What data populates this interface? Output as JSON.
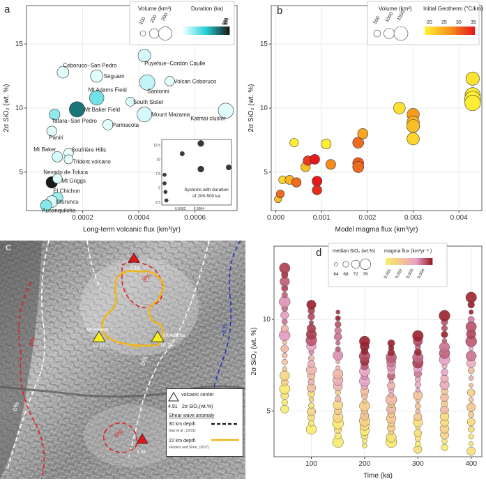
{
  "panels": {
    "a": {
      "letter": "a"
    },
    "b": {
      "letter": "b"
    },
    "c": {
      "letter": "c"
    },
    "d": {
      "letter": "d"
    }
  },
  "chart_data": [
    {
      "id": "a",
      "type": "scatter",
      "xlabel": "Long-term volcanic flux (km³/yr)",
      "ylabel": "2σ SiO₂ (wt. %)",
      "xlim": [
        0,
        0.00075
      ],
      "ylim": [
        2,
        18
      ],
      "xticks": [
        0.0002,
        0.0004,
        0.0006
      ],
      "xtick_labels": [
        "0.0002",
        "0.0004",
        "0.0006"
      ],
      "yticks": [
        5,
        10,
        15
      ],
      "legend": {
        "volume_title": "Volume (km³)",
        "volume_values": [
          "100",
          "200",
          "300"
        ],
        "duration_title": "Duration (ka)",
        "duration_ticks": [
          "0",
          "50",
          "100",
          "150",
          "200"
        ]
      },
      "points": [
        {
          "label": "Ceboruco−San Pedro",
          "x": 0.00013,
          "y": 12.8,
          "v": 120,
          "d": 5
        },
        {
          "label": "Seguam",
          "x": 0.00025,
          "y": 12.5,
          "v": 140,
          "d": 5
        },
        {
          "label": "Puyehue−Cordón Caulle",
          "x": 0.00042,
          "y": 14.1,
          "v": 150,
          "d": 10
        },
        {
          "label": "Volcan Ceboruco",
          "x": 0.00051,
          "y": 12.1,
          "v": 60,
          "d": 2
        },
        {
          "label": "Santorini",
          "x": 0.00043,
          "y": 12.0,
          "v": 260,
          "d": 20
        },
        {
          "label": "Mt Adams Field",
          "x": 0.00025,
          "y": 10.8,
          "v": 220,
          "d": 60
        },
        {
          "label": "South Sister",
          "x": 0.00037,
          "y": 10.5,
          "v": 50,
          "d": 5
        },
        {
          "label": "Mt Baker Field",
          "x": 0.00018,
          "y": 9.9,
          "v": 260,
          "d": 150
        },
        {
          "label": "Mount Mazama",
          "x": 0.00042,
          "y": 9.5,
          "v": 230,
          "d": 10
        },
        {
          "label": "Katmai cluster",
          "x": 0.00071,
          "y": 9.8,
          "v": 250,
          "d": 5
        },
        {
          "label": "Tatara−San Pedro",
          "x": 0.0001,
          "y": 9.5,
          "v": 90,
          "d": 45
        },
        {
          "label": "Parinacota",
          "x": 0.00029,
          "y": 8.7,
          "v": 80,
          "d": 5
        },
        {
          "label": "Paniri",
          "x": 9e-05,
          "y": 8.2,
          "v": 70,
          "d": 5
        },
        {
          "label": "Soufrière Hills",
          "x": 0.00015,
          "y": 6.5,
          "v": 60,
          "d": 2
        },
        {
          "label": "Trident volcano",
          "x": 0.00015,
          "y": 6.0,
          "v": 50,
          "d": 2
        },
        {
          "label": "Mt Baker",
          "x": 0.00011,
          "y": 6.2,
          "v": 80,
          "d": 10
        },
        {
          "label": "Nevado de Toluca",
          "x": 9e-05,
          "y": 4.2,
          "v": 110,
          "d": 200
        },
        {
          "label": "Mt Griggs",
          "x": 0.00011,
          "y": 4.5,
          "v": 60,
          "d": 5
        },
        {
          "label": "El Chichon",
          "x": 0.00011,
          "y": 3.0,
          "v": 100,
          "d": 40
        },
        {
          "label": "Uturuncu",
          "x": 9e-05,
          "y": 2.7,
          "v": 120,
          "d": 10
        },
        {
          "label": "Aucanquilcha",
          "x": 7e-05,
          "y": 2.4,
          "v": 100,
          "d": 50
        }
      ],
      "inset": {
        "title": "Systems with duration of 200-500 ka",
        "xlim": [
          0,
          0.00075
        ],
        "ylim": [
          2,
          13.5
        ],
        "xtick_labels": [
          "0.0002",
          "0.0004"
        ],
        "ytick_labels": [
          "2.5",
          "5",
          "7.5",
          "10",
          "12.5"
        ],
        "yticks": [
          2.5,
          5,
          7.5,
          10,
          12.5
        ],
        "xticks": [
          0.0002,
          0.0004
        ],
        "points": [
          {
            "x": 5e-05,
            "y": 2.8,
            "s": 3
          },
          {
            "x": 4e-05,
            "y": 4.3,
            "s": 3
          },
          {
            "x": 3e-05,
            "y": 5.8,
            "s": 3
          },
          {
            "x": 3e-05,
            "y": 7.3,
            "s": 3
          },
          {
            "x": 0.00022,
            "y": 11.0,
            "s": 4
          },
          {
            "x": 0.00042,
            "y": 12.8,
            "s": 6
          },
          {
            "x": 0.00042,
            "y": 8.3,
            "s": 6
          },
          {
            "x": 0.00072,
            "y": 8.6,
            "s": 5
          }
        ]
      }
    },
    {
      "id": "b",
      "type": "scatter",
      "xlabel": "Model magma flux (km³/yr)",
      "ylabel": "2σ SiO₂ (wt. %)",
      "xlim": [
        -0.0001,
        0.0045
      ],
      "ylim": [
        2,
        18
      ],
      "xticks": [
        0.0,
        0.001,
        0.002,
        0.003,
        0.004
      ],
      "xtick_labels": [
        "0.000",
        "0.001",
        "0.002",
        "0.003",
        "0.004"
      ],
      "yticks": [
        5,
        10,
        15
      ],
      "legend": {
        "volume_title": "Volume (km³)",
        "volume_values": [
          "500",
          "1000",
          "1500"
        ],
        "geotherm_title": "Initial Geotherm (°C/km)",
        "geotherm_ticks": [
          "20",
          "25",
          "30",
          "35"
        ]
      },
      "points": [
        {
          "x": 5e-05,
          "y": 2.9,
          "v": 100,
          "g": 24
        },
        {
          "x": 0.0001,
          "y": 3.3,
          "v": 150,
          "g": 30
        },
        {
          "x": 0.00015,
          "y": 4.4,
          "v": 150,
          "g": 22
        },
        {
          "x": 0.0003,
          "y": 4.4,
          "v": 250,
          "g": 25
        },
        {
          "x": 0.00045,
          "y": 4.2,
          "v": 300,
          "g": 30
        },
        {
          "x": 0.0004,
          "y": 7.3,
          "v": 200,
          "g": 20
        },
        {
          "x": 0.00065,
          "y": 5.4,
          "v": 300,
          "g": 24
        },
        {
          "x": 0.0007,
          "y": 5.9,
          "v": 300,
          "g": 33
        },
        {
          "x": 0.0009,
          "y": 4.3,
          "v": 350,
          "g": 35
        },
        {
          "x": 0.00085,
          "y": 6.0,
          "v": 350,
          "g": 35
        },
        {
          "x": 0.0009,
          "y": 3.6,
          "v": 300,
          "g": 34
        },
        {
          "x": 0.0011,
          "y": 7.2,
          "v": 350,
          "g": 20
        },
        {
          "x": 0.0012,
          "y": 5.6,
          "v": 350,
          "g": 28
        },
        {
          "x": 0.0018,
          "y": 7.3,
          "v": 500,
          "g": 30
        },
        {
          "x": 0.0018,
          "y": 5.7,
          "v": 500,
          "g": 31
        },
        {
          "x": 0.0018,
          "y": 5.4,
          "v": 500,
          "g": 30
        },
        {
          "x": 0.0019,
          "y": 8.0,
          "v": 400,
          "g": 26
        },
        {
          "x": 0.0027,
          "y": 10.0,
          "v": 600,
          "g": 21
        },
        {
          "x": 0.003,
          "y": 9.5,
          "v": 700,
          "g": 27
        },
        {
          "x": 0.003,
          "y": 8.9,
          "v": 700,
          "g": 25
        },
        {
          "x": 0.003,
          "y": 8.6,
          "v": 800,
          "g": 24
        },
        {
          "x": 0.003,
          "y": 7.6,
          "v": 700,
          "g": 22
        },
        {
          "x": 0.0043,
          "y": 12.3,
          "v": 900,
          "g": 21
        },
        {
          "x": 0.0043,
          "y": 11.0,
          "v": 1300,
          "g": 20
        },
        {
          "x": 0.0043,
          "y": 10.7,
          "v": 1500,
          "g": 20
        },
        {
          "x": 0.0043,
          "y": 10.4,
          "v": 1400,
          "g": 20
        }
      ]
    },
    {
      "id": "d",
      "type": "scatter",
      "xlabel": "Time (ka)",
      "ylabel": "2σ SiO₂ (wt. %)",
      "xlim": [
        30,
        420
      ],
      "ylim": [
        2.5,
        14
      ],
      "xticks": [
        100,
        200,
        300,
        400
      ],
      "yticks": [
        5,
        10
      ],
      "legend": {
        "sio2_title": "median SiO₂ (wt.%)",
        "sio2_values": [
          "64",
          "68",
          "72",
          "76"
        ],
        "flux_title": "magma flux (km³yr⁻¹ )",
        "flux_ticks": [
          "0.001",
          "0.002",
          "0.003",
          "0.004"
        ]
      }
    }
  ],
  "map": {
    "volcano_center_label": "volcanic center",
    "sio2_example_value": "4.91",
    "sio2_example_label": "2σ SiO₂(wt.%)",
    "anomaly_title": "Shear wave anomaly",
    "depth30_label": "30 km depth",
    "depth30_source": "Gao et al., (2011)",
    "depth22_label": "22 km depth",
    "depth22_source": "Flinders and Shen, (2017)",
    "contours": [
      {
        "id": "label-8pct-rainier",
        "text": "8%"
      },
      {
        "id": "label-6pct-west",
        "text": "6%"
      },
      {
        "id": "label-6pct-south",
        "text": "6%"
      },
      {
        "id": "label-0pct-center",
        "text": "0%"
      },
      {
        "id": "label-0pct-west",
        "text": "0%"
      },
      {
        "id": "label-6pct-blue",
        "text": "+6%"
      },
      {
        "id": "label-0pct-sh",
        "text": "0%"
      },
      {
        "id": "label-6pct-sh",
        "text": "6%"
      }
    ],
    "volcanoes": [
      {
        "name": "",
        "value": "5.33",
        "color": "#e3161b"
      },
      {
        "name": "Mt Helens",
        "value": "12.27",
        "color": "#f7ef1e"
      },
      {
        "name": "Mt Adams",
        "value": "10.74",
        "color": "#f7ef1e"
      },
      {
        "name": "",
        "value": "4.91",
        "color": "#e3161b"
      }
    ]
  },
  "colors": {
    "duration_low": "#e9ffff",
    "duration_high": "#1a1a1a",
    "geo_low": "#ffee33",
    "geo_high": "#e31a1c"
  }
}
